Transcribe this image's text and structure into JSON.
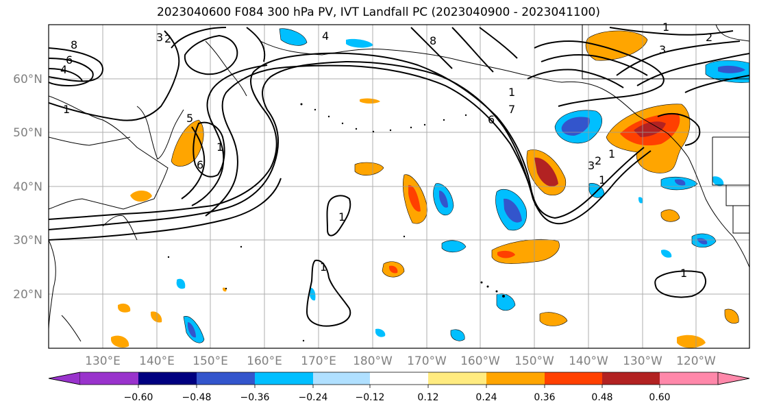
{
  "title": "2023040600 F084 300 hPa PV, IVT Landfall PC (2023040900 - 2023041100)",
  "lat_labels": [
    "60°N",
    "50°N",
    "40°N",
    "30°N",
    "20°N"
  ],
  "lon_labels": [
    "130°E",
    "140°E",
    "150°E",
    "160°E",
    "170°E",
    "180°W",
    "170°W",
    "160°W",
    "150°W",
    "140°W",
    "130°W",
    "120°W"
  ],
  "colorbar": {
    "ticks": [
      "−0.60",
      "−0.48",
      "−0.36",
      "−0.24",
      "−0.12",
      "0.12",
      "0.24",
      "0.36",
      "0.48",
      "0.60"
    ],
    "colors": [
      "#9933cc",
      "#000080",
      "#3355cc",
      "#00bfff",
      "#b0e0ff",
      "#ffffff",
      "#ffeb80",
      "#ffa500",
      "#ff4000",
      "#b22222",
      "#ff88aa"
    ]
  },
  "contour_labels": [
    "8",
    "6",
    "4",
    "1",
    "3",
    "2",
    "4",
    "8",
    "5",
    "1",
    "6",
    "1",
    "1",
    "1",
    "6",
    "7",
    "3",
    "2",
    "1",
    "3",
    "2",
    "1",
    "1",
    "1"
  ],
  "colors": {
    "grid": "#999999",
    "contour": "#000000",
    "coast": "#000000"
  }
}
